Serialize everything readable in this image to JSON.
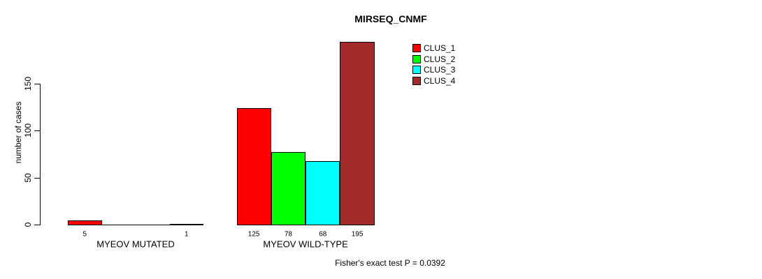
{
  "title": "MIRSEQ_CNMF",
  "chart_data": {
    "type": "bar",
    "title": "MIRSEQ_CNMF",
    "xlabel": "",
    "ylabel": "number of cases",
    "ylim": [
      0,
      197
    ],
    "yticks": [
      0,
      50,
      100,
      150
    ],
    "ytick_labels": [
      "0",
      "50",
      "100",
      "150"
    ],
    "grid": false,
    "legend_position": "top-right",
    "legend": [
      {
        "label": "CLUS_1",
        "color": "#FF0000"
      },
      {
        "label": "CLUS_2",
        "color": "#00FF00"
      },
      {
        "label": "CLUS_3",
        "color": "#00FFFF"
      },
      {
        "label": "CLUS_4",
        "color": "#A52A2A"
      }
    ],
    "series_colors": [
      "#FF0000",
      "#00FF00",
      "#00FFFF",
      "#A52A2A"
    ],
    "groups": [
      {
        "label": "MYEOV MUTATED",
        "values": [
          5,
          0,
          0,
          1
        ],
        "bar_labels": [
          "5",
          "",
          "",
          "1"
        ]
      },
      {
        "label": "MYEOV WILD-TYPE",
        "values": [
          125,
          78,
          68,
          195
        ],
        "bar_labels": [
          "125",
          "78",
          "68",
          "195"
        ]
      }
    ],
    "annotation": "Fisher's exact test P = 0.0392"
  }
}
